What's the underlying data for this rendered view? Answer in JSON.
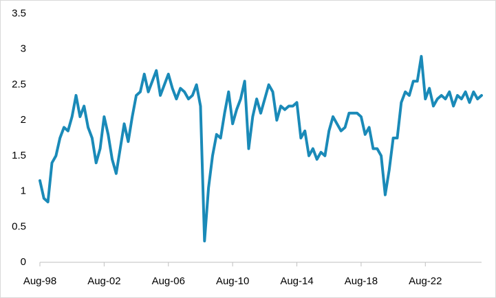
{
  "chart_data": {
    "type": "line",
    "categories": [
      "Aug-98",
      null,
      null,
      null,
      null,
      null,
      null,
      null,
      null,
      null,
      null,
      null,
      null,
      null,
      null,
      null,
      "Aug-02",
      null,
      null,
      null,
      null,
      null,
      null,
      null,
      null,
      null,
      null,
      null,
      null,
      null,
      null,
      null,
      "Aug-06",
      null,
      null,
      null,
      null,
      null,
      null,
      null,
      null,
      null,
      null,
      null,
      null,
      null,
      null,
      null,
      "Aug-10",
      null,
      null,
      null,
      null,
      null,
      null,
      null,
      null,
      null,
      null,
      null,
      null,
      null,
      null,
      null,
      "Aug-14",
      null,
      null,
      null,
      null,
      null,
      null,
      null,
      null,
      null,
      null,
      null,
      null,
      null,
      null,
      null,
      "Aug-18",
      null,
      null,
      null,
      null,
      null,
      null,
      null,
      null,
      null,
      null,
      null,
      null,
      null,
      null,
      null,
      "Aug-22",
      null,
      null,
      null,
      null,
      null,
      null,
      null,
      null,
      null,
      null,
      null,
      null,
      null,
      null
    ],
    "series": [
      {
        "color": "#1a8ab8",
        "values": [
          1.15,
          0.9,
          0.85,
          1.4,
          1.5,
          1.75,
          1.9,
          1.85,
          2.05,
          2.35,
          2.05,
          2.2,
          1.9,
          1.75,
          1.4,
          1.6,
          2.05,
          1.8,
          1.45,
          1.25,
          1.6,
          1.95,
          1.7,
          2.05,
          2.35,
          2.4,
          2.65,
          2.4,
          2.55,
          2.7,
          2.35,
          2.5,
          2.65,
          2.45,
          2.3,
          2.45,
          2.4,
          2.3,
          2.35,
          2.5,
          2.2,
          0.3,
          1.05,
          1.5,
          1.8,
          1.75,
          2.1,
          2.4,
          1.95,
          2.15,
          2.3,
          2.55,
          1.6,
          2.05,
          2.3,
          2.1,
          2.3,
          2.5,
          2.4,
          2.0,
          2.2,
          2.15,
          2.2,
          2.2,
          2.25,
          1.75,
          1.85,
          1.5,
          1.6,
          1.45,
          1.55,
          1.5,
          1.85,
          2.05,
          1.95,
          1.85,
          1.9,
          2.1,
          2.1,
          2.1,
          2.05,
          1.8,
          1.9,
          1.6,
          1.6,
          1.5,
          0.95,
          1.3,
          1.75,
          1.75,
          2.25,
          2.4,
          2.35,
          2.55,
          2.55,
          2.9,
          2.3,
          2.45,
          2.2,
          2.3,
          2.35,
          2.3,
          2.4,
          2.2,
          2.35,
          2.3,
          2.4,
          2.25,
          2.4,
          2.3,
          2.35
        ]
      }
    ],
    "ylim": [
      0,
      3.5
    ],
    "yticks": [
      0,
      0.5,
      1,
      1.5,
      2,
      2.5,
      3,
      3.5
    ],
    "grid": false
  }
}
